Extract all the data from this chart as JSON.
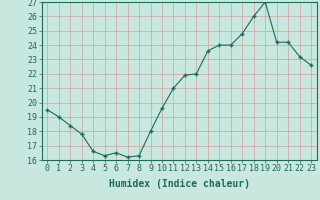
{
  "x": [
    0,
    1,
    2,
    3,
    4,
    5,
    6,
    7,
    8,
    9,
    10,
    11,
    12,
    13,
    14,
    15,
    16,
    17,
    18,
    19,
    20,
    21,
    22,
    23
  ],
  "y": [
    19.5,
    19.0,
    18.4,
    17.8,
    16.6,
    16.3,
    16.5,
    16.2,
    16.3,
    18.0,
    19.6,
    21.0,
    21.9,
    22.0,
    23.6,
    24.0,
    24.0,
    24.8,
    26.0,
    27.0,
    24.2,
    24.2,
    23.2,
    22.6
  ],
  "line_color": "#1a6b5a",
  "marker_color": "#1a6b5a",
  "bg_color": "#c8e8df",
  "grid_color": "#b0d4cc",
  "axis_color": "#1a6b5a",
  "xlabel": "Humidex (Indice chaleur)",
  "ylim": [
    16,
    27
  ],
  "xlim": [
    -0.5,
    23.5
  ],
  "yticks": [
    16,
    17,
    18,
    19,
    20,
    21,
    22,
    23,
    24,
    25,
    26,
    27
  ],
  "xticks": [
    0,
    1,
    2,
    3,
    4,
    5,
    6,
    7,
    8,
    9,
    10,
    11,
    12,
    13,
    14,
    15,
    16,
    17,
    18,
    19,
    20,
    21,
    22,
    23
  ],
  "xtick_labels": [
    "0",
    "1",
    "2",
    "3",
    "4",
    "5",
    "6",
    "7",
    "8",
    "9",
    "10",
    "11",
    "12",
    "13",
    "14",
    "15",
    "16",
    "17",
    "18",
    "19",
    "20",
    "21",
    "22",
    "23"
  ],
  "font_color": "#1a6b5a",
  "fontsize": 6,
  "xlabel_fontsize": 7
}
